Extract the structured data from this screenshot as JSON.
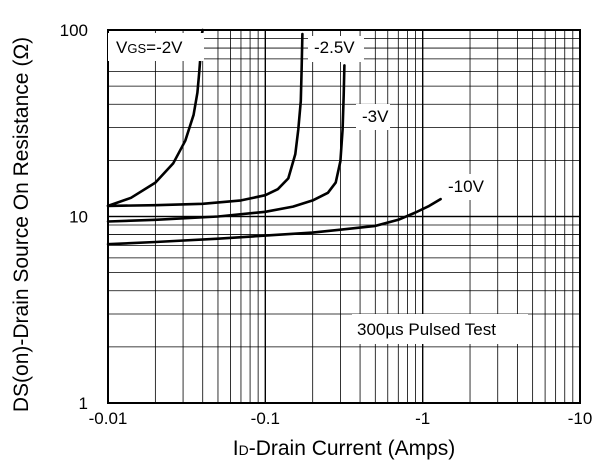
{
  "chart_data": {
    "type": "line",
    "x_scale": "log",
    "y_scale": "log",
    "xlim": [
      -0.01,
      -10
    ],
    "ylim": [
      1,
      100
    ],
    "x_ticks": [
      "-0.01",
      "-0.1",
      "-1",
      "-10"
    ],
    "y_ticks": [
      "1",
      "10",
      "100"
    ],
    "xlabel": "ID-Drain Current (Amps)",
    "xlabel_sub": "D",
    "xlabel_main": "I",
    "xlabel_rest": "-Drain Current (Amps)",
    "ylabel": "RDS(on)-Drain Source On Resistance (Ω)",
    "ylabel_text": "DS(on)-Drain Source On Resistance",
    "ylabel_unit": "(Ω)",
    "grid": true,
    "annotation": "300µs Pulsed Test",
    "series": [
      {
        "name": "VGS=-2V",
        "x": [
          -0.01,
          -0.014,
          -0.02,
          -0.026,
          -0.031,
          -0.035,
          -0.037,
          -0.038,
          -0.039,
          -0.0395,
          -0.04
        ],
        "y": [
          11.4,
          12.6,
          15.2,
          19.3,
          25.5,
          35.1,
          46.1,
          59.1,
          78.8,
          95.2,
          100
        ]
      },
      {
        "name": "-2.5V",
        "x": [
          -0.01,
          -0.02,
          -0.04,
          -0.07,
          -0.1,
          -0.12,
          -0.14,
          -0.155,
          -0.162,
          -0.168,
          -0.17,
          -0.172
        ],
        "y": [
          11.4,
          11.5,
          11.7,
          12.2,
          13.0,
          14.0,
          16.0,
          21.6,
          29.3,
          41.6,
          60.9,
          95.2
        ]
      },
      {
        "name": "-3V",
        "x": [
          -0.01,
          -0.02,
          -0.05,
          -0.1,
          -0.15,
          -0.2,
          -0.25,
          -0.28,
          -0.3,
          -0.31,
          -0.315,
          -0.318
        ],
        "y": [
          9.4,
          9.6,
          10.0,
          10.6,
          11.3,
          12.2,
          13.4,
          15.2,
          19.8,
          29.3,
          44.8,
          64.6
        ]
      },
      {
        "name": "-10V",
        "x": [
          -0.01,
          -0.02,
          -0.05,
          -0.1,
          -0.2,
          -0.3,
          -0.5,
          -0.7,
          -0.9,
          -1.1,
          -1.3
        ],
        "y": [
          7.1,
          7.3,
          7.6,
          7.9,
          8.2,
          8.5,
          8.9,
          9.6,
          10.5,
          11.4,
          12.4
        ]
      }
    ],
    "curve_labels": [
      {
        "series": "VGS=-2V",
        "prefix": "V",
        "sub": "GS",
        "rest": "=-2V"
      },
      {
        "series": "-2.5V",
        "text": "-2.5V"
      },
      {
        "series": "-3V",
        "text": "-3V"
      },
      {
        "series": "-10V",
        "text": "-10V"
      }
    ]
  }
}
